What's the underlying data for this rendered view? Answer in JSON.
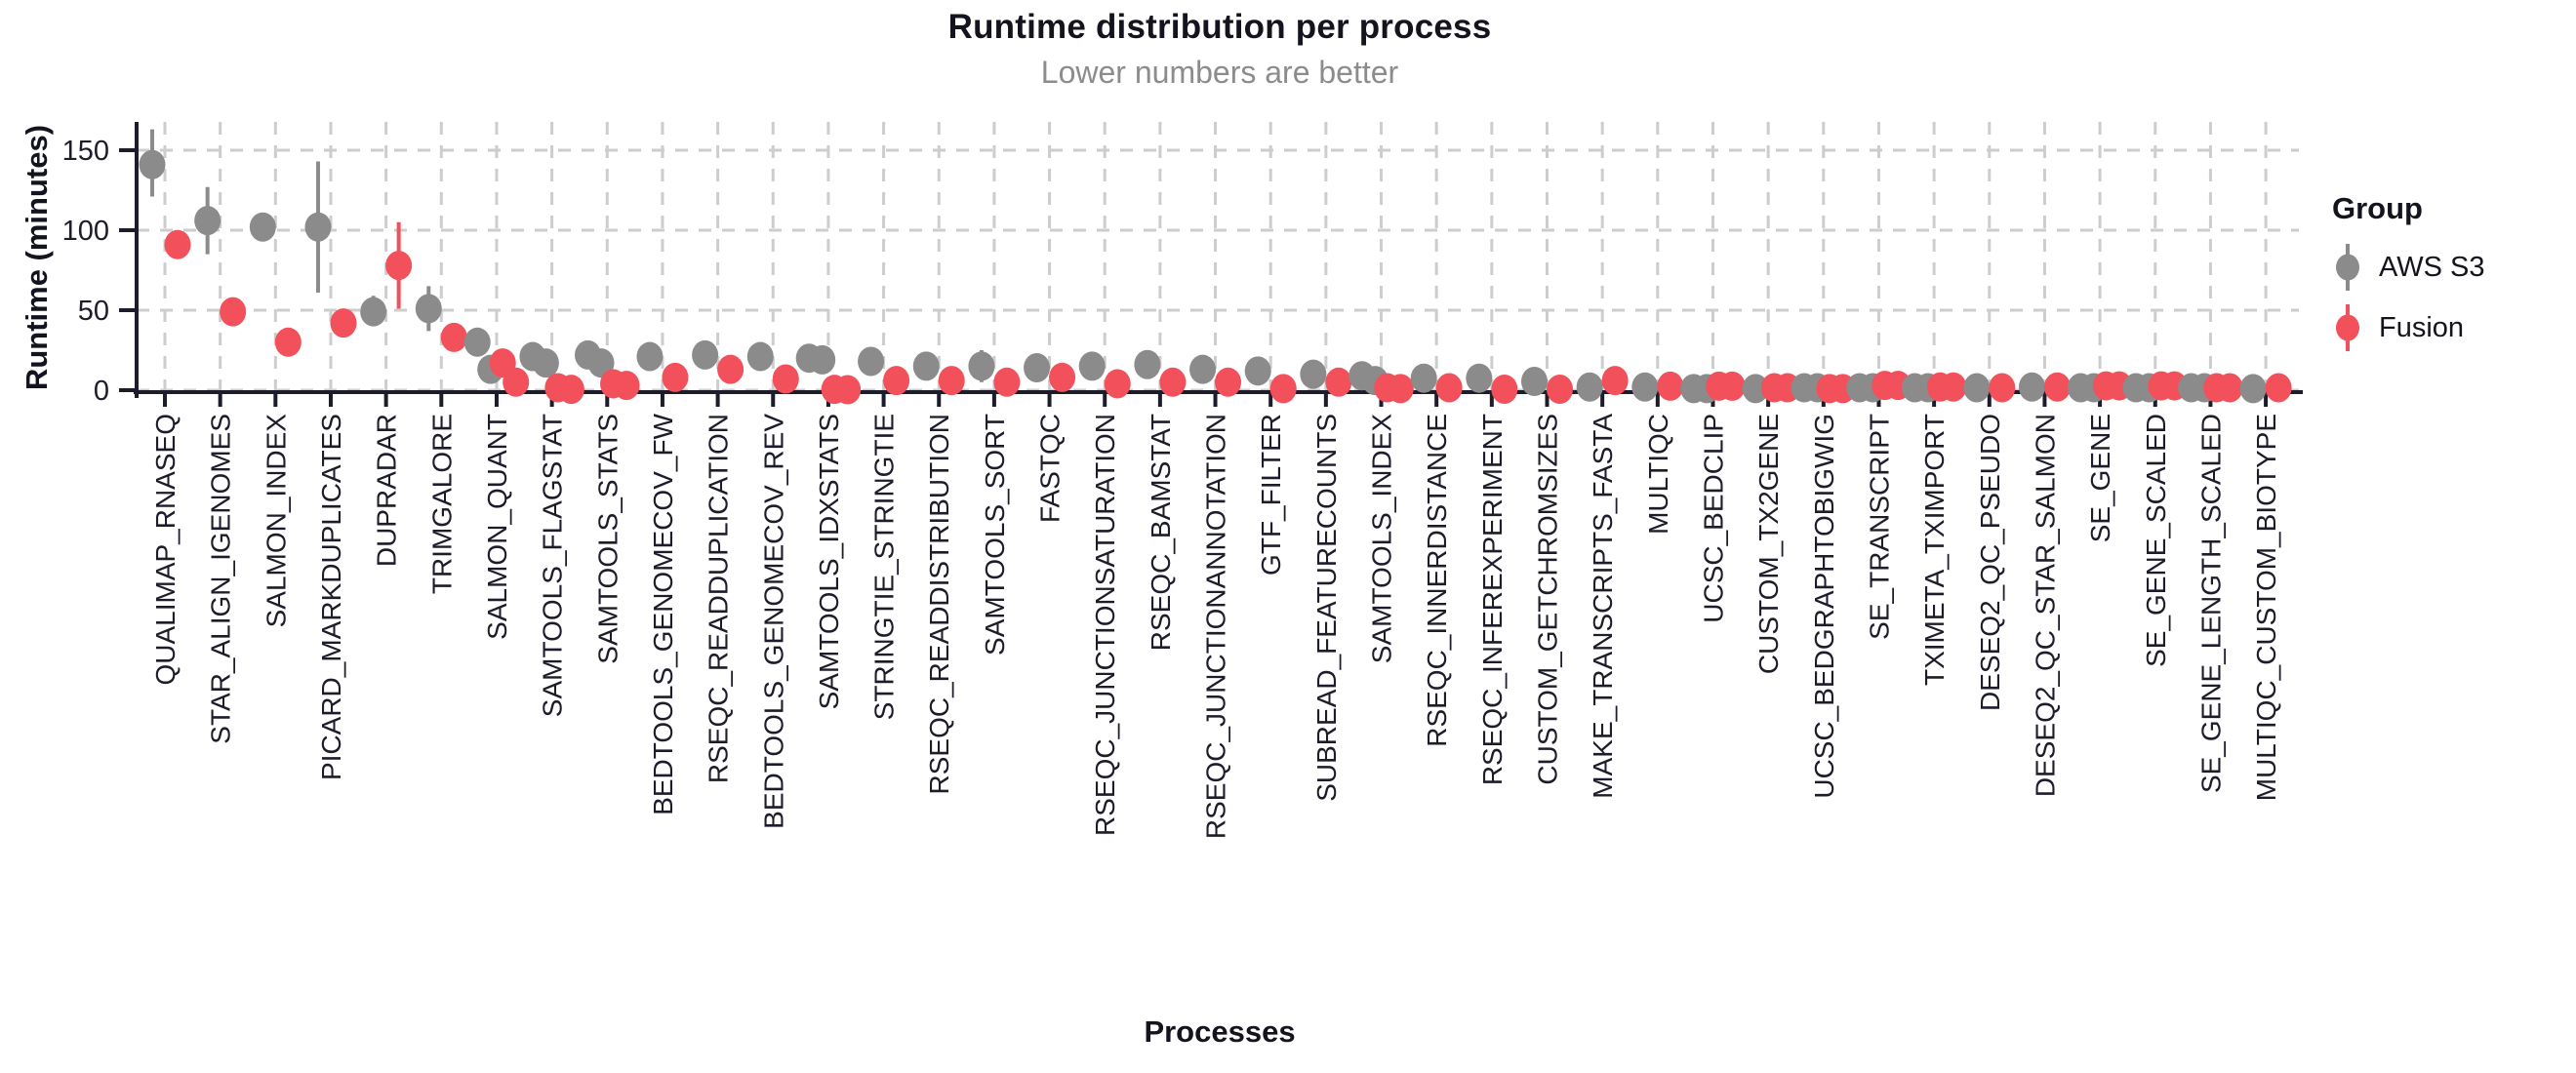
{
  "header": {
    "title": "Runtime distribution per process",
    "subtitle": "Lower numbers are better"
  },
  "axes": {
    "y_title": "Runtime (minutes)",
    "x_title": "Processes",
    "y_ticks": [
      0,
      50,
      100,
      150
    ]
  },
  "legend": {
    "title": "Group",
    "items": [
      {
        "label": "AWS S3",
        "color": "#8b8b8b"
      },
      {
        "label": "Fusion",
        "color": "#f2505a"
      }
    ]
  },
  "colors": {
    "aws": "#8b8b8b",
    "fusion": "#f2505a",
    "axis": "#1c1c2a",
    "axis_text": "#1c1c2a",
    "grid": "#cdcdcd",
    "title": "#14141e",
    "subtitle": "#8c8c8c"
  },
  "chart_data": {
    "type": "scatter",
    "subtype": "pointrange-dodged",
    "title": "Runtime distribution per process",
    "subtitle": "Lower numbers are better",
    "xlabel": "Processes",
    "ylabel": "Runtime (minutes)",
    "ylim": [
      0,
      168
    ],
    "yticks": [
      0,
      50,
      100,
      150
    ],
    "grid": "dashed-both-axes",
    "legend_position": "right",
    "series_names": [
      "AWS S3",
      "Fusion"
    ],
    "categories": [
      "QUALIMAP_RNASEQ",
      "STAR_ALIGN_IGENOMES",
      "SALMON_INDEX",
      "PICARD_MARKDUPLICATES",
      "DUPRADAR",
      "TRIMGALORE",
      "SALMON_QUANT",
      "SAMTOOLS_FLAGSTAT",
      "SAMTOOLS_STATS",
      "BEDTOOLS_GENOMECOV_FW",
      "RSEQC_READDUPLICATION",
      "BEDTOOLS_GENOMECOV_REV",
      "SAMTOOLS_IDXSTATS",
      "STRINGTIE_STRINGTIE",
      "RSEQC_READDISTRIBUTION",
      "SAMTOOLS_SORT",
      "FASTQC",
      "RSEQC_JUNCTIONSATURATION",
      "RSEQC_BAMSTAT",
      "RSEQC_JUNCTIONANNOTATION",
      "GTF_FILTER",
      "SUBREAD_FEATURECOUNTS",
      "SAMTOOLS_INDEX",
      "RSEQC_INNERDISTANCE",
      "RSEQC_INFEREXPERIMENT",
      "CUSTOM_GETCHROMSIZES",
      "MAKE_TRANSCRIPTS_FASTA",
      "MULTIQC",
      "UCSC_BEDCLIP",
      "CUSTOM_TX2GENE",
      "UCSC_BEDGRAPHTOBIGWIG",
      "SE_TRANSCRIPT",
      "TXIMETA_TXIMPORT",
      "DESEQ2_QC_PSEUDO",
      "DESEQ2_QC_STAR_SALMON",
      "SE_GENE",
      "SE_GENE_SCALED",
      "SE_GENE_LENGTH_SCALED",
      "MULTIQC_CUSTOM_BIOTYPE"
    ],
    "points": [
      {
        "process": "QUALIMAP_RNASEQ",
        "aws": {
          "values": [
            141
          ],
          "range": [
            121,
            163
          ]
        },
        "fusion": {
          "values": [
            91
          ],
          "range": [
            84,
            96
          ]
        }
      },
      {
        "process": "STAR_ALIGN_IGENOMES",
        "aws": {
          "values": [
            106
          ],
          "range": [
            85,
            127
          ]
        },
        "fusion": {
          "values": [
            49
          ],
          "range": null
        }
      },
      {
        "process": "SALMON_INDEX",
        "aws": {
          "values": [
            102
          ],
          "range": null
        },
        "fusion": {
          "values": [
            30
          ],
          "range": null
        }
      },
      {
        "process": "PICARD_MARKDUPLICATES",
        "aws": {
          "values": [
            102
          ],
          "range": [
            61,
            143
          ]
        },
        "fusion": {
          "values": [
            42
          ],
          "range": [
            37,
            47
          ]
        }
      },
      {
        "process": "DUPRADAR",
        "aws": {
          "values": [
            49
          ],
          "range": [
            40,
            59
          ]
        },
        "fusion": {
          "values": [
            78
          ],
          "range": [
            51,
            105
          ]
        }
      },
      {
        "process": "TRIMGALORE",
        "aws": {
          "values": [
            51
          ],
          "range": [
            37,
            65
          ]
        },
        "fusion": {
          "values": [
            33
          ],
          "range": null
        }
      },
      {
        "process": "SALMON_QUANT",
        "aws": {
          "values": [
            30,
            13
          ],
          "range": null
        },
        "fusion": {
          "values": [
            17,
            5
          ],
          "range": null
        }
      },
      {
        "process": "SAMTOOLS_FLAGSTAT",
        "aws": {
          "values": [
            21,
            17
          ],
          "range": null
        },
        "fusion": {
          "values": [
            1.5,
            0.5
          ],
          "range": null
        }
      },
      {
        "process": "SAMTOOLS_STATS",
        "aws": {
          "values": [
            22,
            17
          ],
          "range": [
            15,
            27
          ]
        },
        "fusion": {
          "values": [
            4,
            3
          ],
          "range": null
        }
      },
      {
        "process": "BEDTOOLS_GENOMECOV_FW",
        "aws": {
          "values": [
            21
          ],
          "range": null
        },
        "fusion": {
          "values": [
            8
          ],
          "range": null
        }
      },
      {
        "process": "RSEQC_READDUPLICATION",
        "aws": {
          "values": [
            22
          ],
          "range": null
        },
        "fusion": {
          "values": [
            13
          ],
          "range": null
        }
      },
      {
        "process": "BEDTOOLS_GENOMECOV_REV",
        "aws": {
          "values": [
            21
          ],
          "range": null
        },
        "fusion": {
          "values": [
            7
          ],
          "range": null
        }
      },
      {
        "process": "SAMTOOLS_IDXSTATS",
        "aws": {
          "values": [
            20,
            19
          ],
          "range": null
        },
        "fusion": {
          "values": [
            0.5,
            0.3
          ],
          "range": null
        }
      },
      {
        "process": "STRINGTIE_STRINGTIE",
        "aws": {
          "values": [
            18
          ],
          "range": null
        },
        "fusion": {
          "values": [
            6
          ],
          "range": null
        }
      },
      {
        "process": "RSEQC_READDISTRIBUTION",
        "aws": {
          "values": [
            15
          ],
          "range": null
        },
        "fusion": {
          "values": [
            6
          ],
          "range": null
        }
      },
      {
        "process": "SAMTOOLS_SORT",
        "aws": {
          "values": [
            15
          ],
          "range": [
            5,
            25
          ]
        },
        "fusion": {
          "values": [
            5
          ],
          "range": null
        }
      },
      {
        "process": "FASTQC",
        "aws": {
          "values": [
            14
          ],
          "range": null
        },
        "fusion": {
          "values": [
            8
          ],
          "range": null
        }
      },
      {
        "process": "RSEQC_JUNCTIONSATURATION",
        "aws": {
          "values": [
            15
          ],
          "range": null
        },
        "fusion": {
          "values": [
            4
          ],
          "range": null
        }
      },
      {
        "process": "RSEQC_BAMSTAT",
        "aws": {
          "values": [
            16
          ],
          "range": null
        },
        "fusion": {
          "values": [
            5
          ],
          "range": null
        }
      },
      {
        "process": "RSEQC_JUNCTIONANNOTATION",
        "aws": {
          "values": [
            13
          ],
          "range": null
        },
        "fusion": {
          "values": [
            5
          ],
          "range": null
        }
      },
      {
        "process": "GTF_FILTER",
        "aws": {
          "values": [
            12
          ],
          "range": null
        },
        "fusion": {
          "values": [
            1
          ],
          "range": null
        }
      },
      {
        "process": "SUBREAD_FEATURECOUNTS",
        "aws": {
          "values": [
            10
          ],
          "range": null
        },
        "fusion": {
          "values": [
            5
          ],
          "range": null
        }
      },
      {
        "process": "SAMTOOLS_INDEX",
        "aws": {
          "values": [
            9,
            6
          ],
          "range": null
        },
        "fusion": {
          "values": [
            1.5,
            1
          ],
          "range": null
        }
      },
      {
        "process": "RSEQC_INNERDISTANCE",
        "aws": {
          "values": [
            7.5
          ],
          "range": null
        },
        "fusion": {
          "values": [
            1.5
          ],
          "range": null
        }
      },
      {
        "process": "RSEQC_INFEREXPERIMENT",
        "aws": {
          "values": [
            7.5
          ],
          "range": null
        },
        "fusion": {
          "values": [
            0.6
          ],
          "range": null
        }
      },
      {
        "process": "CUSTOM_GETCHROMSIZES",
        "aws": {
          "values": [
            5.5
          ],
          "range": null
        },
        "fusion": {
          "values": [
            0.6
          ],
          "range": null
        }
      },
      {
        "process": "MAKE_TRANSCRIPTS_FASTA",
        "aws": {
          "values": [
            2
          ],
          "range": null
        },
        "fusion": {
          "values": [
            6
          ],
          "range": null
        }
      },
      {
        "process": "MULTIQC",
        "aws": {
          "values": [
            2
          ],
          "range": null
        },
        "fusion": {
          "values": [
            2.5
          ],
          "range": null
        }
      },
      {
        "process": "UCSC_BEDCLIP",
        "aws": {
          "values": [
            1,
            1
          ],
          "range": null
        },
        "fusion": {
          "values": [
            2.5,
            2.5
          ],
          "range": null
        }
      },
      {
        "process": "CUSTOM_TX2GENE",
        "aws": {
          "values": [
            1
          ],
          "range": null
        },
        "fusion": {
          "values": [
            1.5,
            1.5
          ],
          "range": null
        }
      },
      {
        "process": "UCSC_BEDGRAPHTOBIGWIG",
        "aws": {
          "values": [
            1.5,
            1.5
          ],
          "range": null
        },
        "fusion": {
          "values": [
            1,
            1
          ],
          "range": null
        }
      },
      {
        "process": "SE_TRANSCRIPT",
        "aws": {
          "values": [
            1.5,
            1.5
          ],
          "range": null
        },
        "fusion": {
          "values": [
            3,
            3
          ],
          "range": null
        }
      },
      {
        "process": "TXIMETA_TXIMPORT",
        "aws": {
          "values": [
            1.5,
            1.5
          ],
          "range": null
        },
        "fusion": {
          "values": [
            2,
            2
          ],
          "range": null
        }
      },
      {
        "process": "DESEQ2_QC_PSEUDO",
        "aws": {
          "values": [
            1.5
          ],
          "range": null
        },
        "fusion": {
          "values": [
            1.5
          ],
          "range": null
        }
      },
      {
        "process": "DESEQ2_QC_STAR_SALMON",
        "aws": {
          "values": [
            2
          ],
          "range": null
        },
        "fusion": {
          "values": [
            2
          ],
          "range": null
        }
      },
      {
        "process": "SE_GENE",
        "aws": {
          "values": [
            1.5,
            1.5
          ],
          "range": null
        },
        "fusion": {
          "values": [
            2.7,
            2.7
          ],
          "range": null
        }
      },
      {
        "process": "SE_GENE_SCALED",
        "aws": {
          "values": [
            1.5,
            1.5
          ],
          "range": null
        },
        "fusion": {
          "values": [
            2.7,
            2.7
          ],
          "range": null
        }
      },
      {
        "process": "SE_GENE_LENGTH_SCALED",
        "aws": {
          "values": [
            1.5,
            1.5
          ],
          "range": null
        },
        "fusion": {
          "values": [
            1.5,
            1.5
          ],
          "range": null
        }
      },
      {
        "process": "MULTIQC_CUSTOM_BIOTYPE",
        "aws": {
          "values": [
            1
          ],
          "range": null
        },
        "fusion": {
          "values": [
            1.5
          ],
          "range": null
        }
      }
    ]
  }
}
